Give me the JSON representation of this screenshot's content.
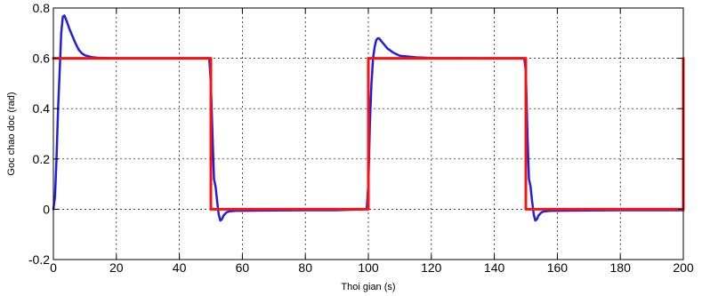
{
  "chart_data": {
    "type": "line",
    "xlabel": "Thoi gian (s)",
    "ylabel": "Goc chao doc (rad)",
    "xlim": [
      0,
      200
    ],
    "ylim": [
      -0.2,
      0.8
    ],
    "x_ticks": [
      "0",
      "20",
      "40",
      "60",
      "80",
      "100",
      "120",
      "140",
      "160",
      "180",
      "200"
    ],
    "y_ticks": [
      "-0.2",
      "0",
      "0.2",
      "0.4",
      "0.6",
      "0.8"
    ],
    "grid": true,
    "series": [
      {
        "color": "#1f1fe0",
        "x": [
          0,
          0.5,
          1,
          1.5,
          2,
          2.5,
          3,
          3.5,
          4,
          5,
          6,
          7,
          8,
          9,
          10,
          12,
          14,
          20,
          30,
          40,
          49.5,
          50,
          50.5,
          51,
          51.5,
          52,
          52.5,
          53,
          53.5,
          54,
          55,
          56,
          58,
          60,
          70,
          80,
          90,
          99.5,
          100,
          100.5,
          101,
          101.5,
          102,
          102.5,
          103,
          103.5,
          104,
          105,
          106,
          108,
          110,
          115,
          120,
          140,
          149.5,
          150,
          150.5,
          151,
          151.5,
          152,
          152.5,
          153,
          153.5,
          154,
          155,
          156,
          158,
          160,
          170,
          180,
          190,
          200
        ],
        "y": [
          0,
          0.05,
          0.2,
          0.4,
          0.55,
          0.7,
          0.765,
          0.77,
          0.755,
          0.72,
          0.69,
          0.66,
          0.635,
          0.62,
          0.612,
          0.605,
          0.602,
          0.6,
          0.6,
          0.6,
          0.6,
          0.5,
          0.3,
          0.12,
          0.09,
          0.03,
          -0.02,
          -0.045,
          -0.04,
          -0.025,
          -0.012,
          -0.008,
          -0.006,
          -0.006,
          -0.005,
          -0.004,
          -0.004,
          0,
          0.1,
          0.35,
          0.5,
          0.6,
          0.645,
          0.672,
          0.68,
          0.678,
          0.67,
          0.655,
          0.64,
          0.622,
          0.61,
          0.604,
          0.601,
          0.6,
          0.6,
          0.55,
          0.3,
          0.12,
          0.09,
          0.03,
          -0.02,
          -0.045,
          -0.04,
          -0.025,
          -0.012,
          -0.008,
          -0.006,
          -0.006,
          -0.005,
          -0.004,
          -0.004,
          -0.004
        ]
      },
      {
        "color": "#ff1010",
        "x": [
          0,
          0.3,
          50,
          50,
          100,
          100,
          150,
          150,
          200,
          200
        ],
        "y": [
          0.6,
          0.6,
          0.6,
          0,
          0,
          0.6,
          0.6,
          0,
          0,
          0.6
        ]
      }
    ]
  }
}
